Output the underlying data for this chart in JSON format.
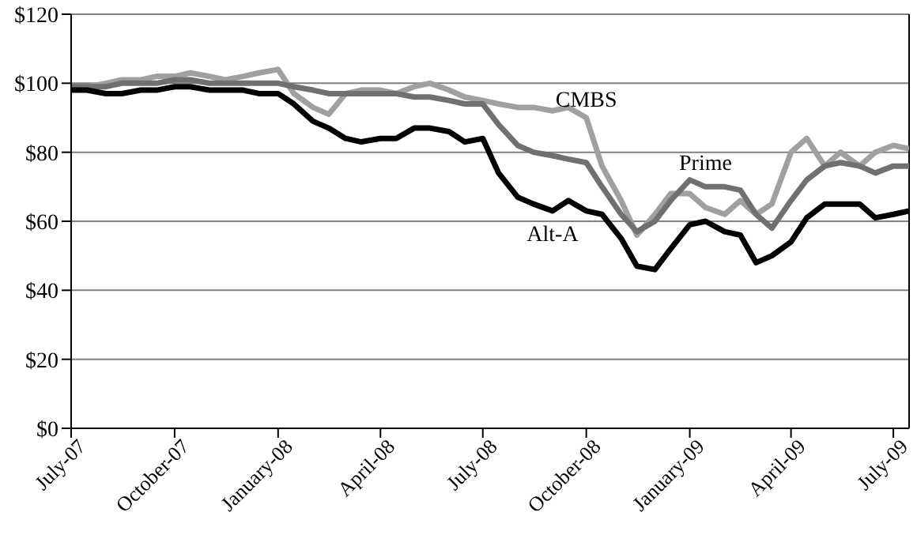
{
  "chart_data": {
    "type": "line",
    "x": [
      "2007-07-01",
      "2007-07-15",
      "2007-08-01",
      "2007-08-15",
      "2007-09-01",
      "2007-09-15",
      "2007-10-01",
      "2007-10-15",
      "2007-11-01",
      "2007-11-15",
      "2007-12-01",
      "2007-12-15",
      "2008-01-01",
      "2008-01-15",
      "2008-02-01",
      "2008-02-15",
      "2008-03-01",
      "2008-03-15",
      "2008-04-01",
      "2008-04-15",
      "2008-05-01",
      "2008-05-15",
      "2008-06-01",
      "2008-06-15",
      "2008-07-01",
      "2008-07-15",
      "2008-08-01",
      "2008-08-15",
      "2008-09-01",
      "2008-09-15",
      "2008-10-01",
      "2008-10-15",
      "2008-11-01",
      "2008-11-15",
      "2008-12-01",
      "2008-12-15",
      "2009-01-01",
      "2009-01-15",
      "2009-02-01",
      "2009-02-15",
      "2009-03-01",
      "2009-03-15",
      "2009-04-01",
      "2009-04-15",
      "2009-05-01",
      "2009-05-15",
      "2009-06-01",
      "2009-06-15",
      "2009-07-01",
      "2009-07-15"
    ],
    "series": [
      {
        "name": "CMBS",
        "color": "#a0a0a0",
        "values": [
          99,
          99,
          100,
          101,
          101,
          102,
          102,
          103,
          102,
          101,
          102,
          103,
          104,
          97,
          93,
          91,
          97,
          98,
          98,
          97,
          99,
          100,
          98,
          96,
          95,
          94,
          93,
          93,
          92,
          93,
          90,
          76,
          66,
          56,
          62,
          68,
          68,
          64,
          62,
          66,
          62,
          65,
          80,
          84,
          76,
          80,
          76,
          80,
          82,
          81
        ]
      },
      {
        "name": "Prime",
        "color": "#707070",
        "values": [
          99,
          99,
          99,
          100,
          100,
          100,
          101,
          101,
          100,
          100,
          100,
          100,
          100,
          99,
          98,
          97,
          97,
          97,
          97,
          97,
          96,
          96,
          95,
          94,
          94,
          88,
          82,
          80,
          79,
          78,
          77,
          70,
          62,
          57,
          60,
          66,
          72,
          70,
          70,
          69,
          62,
          58,
          66,
          72,
          76,
          77,
          76,
          74,
          76,
          76
        ]
      },
      {
        "name": "Alt-A",
        "color": "#000000",
        "values": [
          98,
          98,
          97,
          97,
          98,
          98,
          99,
          99,
          98,
          98,
          98,
          97,
          97,
          94,
          89,
          87,
          84,
          83,
          84,
          84,
          87,
          87,
          86,
          83,
          84,
          74,
          67,
          65,
          63,
          66,
          63,
          62,
          55,
          47,
          46,
          52,
          59,
          60,
          57,
          56,
          48,
          50,
          54,
          61,
          65,
          65,
          65,
          61,
          62,
          63
        ]
      }
    ],
    "xlim": [
      "2007-07-01",
      "2009-07-15"
    ],
    "xticks": [
      {
        "value": "2007-07-01",
        "label": "July-07"
      },
      {
        "value": "2007-10-01",
        "label": "October-07"
      },
      {
        "value": "2008-01-01",
        "label": "January-08"
      },
      {
        "value": "2008-04-01",
        "label": "April-08"
      },
      {
        "value": "2008-07-01",
        "label": "July-08"
      },
      {
        "value": "2008-10-01",
        "label": "October-08"
      },
      {
        "value": "2009-01-01",
        "label": "January-09"
      },
      {
        "value": "2009-04-01",
        "label": "April-09"
      },
      {
        "value": "2009-07-01",
        "label": "July-09"
      }
    ],
    "ylim": [
      0,
      120
    ],
    "yticks": [
      {
        "value": 0,
        "label": "$0"
      },
      {
        "value": 20,
        "label": "$20"
      },
      {
        "value": 40,
        "label": "$40"
      },
      {
        "value": 60,
        "label": "$60"
      },
      {
        "value": 80,
        "label": "$80"
      },
      {
        "value": 100,
        "label": "$100"
      },
      {
        "value": 120,
        "label": "$120"
      }
    ],
    "grid": "y",
    "marker": "none",
    "line_style": "solid"
  }
}
